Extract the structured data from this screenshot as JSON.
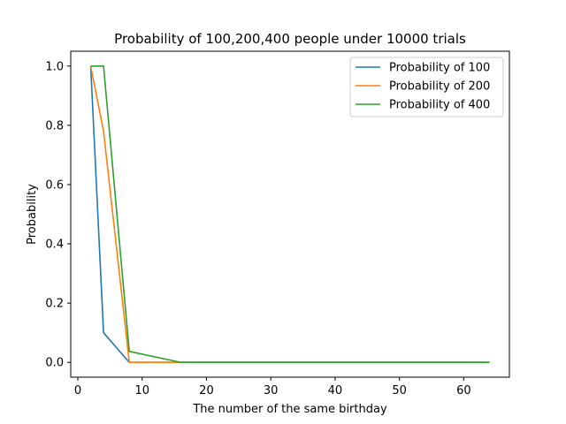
{
  "chart_data": {
    "type": "line",
    "title": "Probability of 100,200,400 people under 10000 trials",
    "xlabel": "The number of the same birthday",
    "ylabel": "Probability",
    "xlim": [
      -1.1,
      67.1
    ],
    "ylim": [
      -0.05,
      1.05
    ],
    "xticks": [
      0,
      10,
      20,
      30,
      40,
      50,
      60
    ],
    "yticks": [
      0.0,
      0.2,
      0.4,
      0.6,
      0.8,
      1.0
    ],
    "xtick_labels": [
      "0",
      "10",
      "20",
      "30",
      "40",
      "50",
      "60"
    ],
    "ytick_labels": [
      "0.0",
      "0.2",
      "0.4",
      "0.6",
      "0.8",
      "1.0"
    ],
    "grid": false,
    "legend_position": "top-right",
    "x": [
      2,
      4,
      8,
      16,
      32,
      64
    ],
    "series": [
      {
        "name": "Probability of 100",
        "color": "#1f77b4",
        "values": [
          1.0,
          0.1,
          0.0,
          0.0,
          0.0,
          0.0
        ]
      },
      {
        "name": "Probability of 200",
        "color": "#ff7f0e",
        "values": [
          1.0,
          0.78,
          0.0,
          0.0,
          0.0,
          0.0
        ]
      },
      {
        "name": "Probability of 400",
        "color": "#2ca02c",
        "values": [
          1.0,
          1.0,
          0.037,
          0.0,
          0.0,
          0.0
        ]
      }
    ]
  }
}
